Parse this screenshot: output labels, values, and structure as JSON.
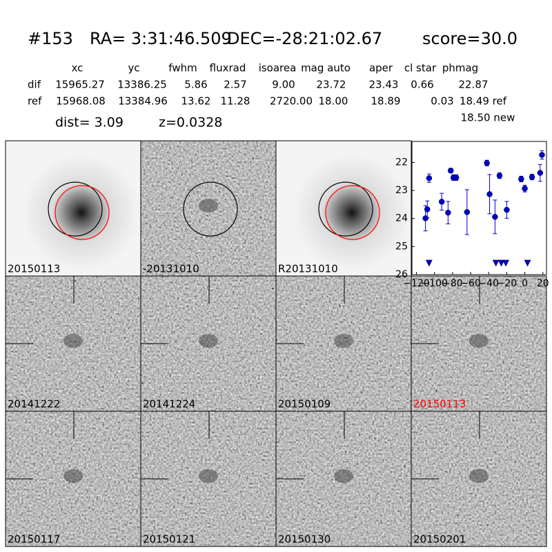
{
  "header": {
    "id": "#153",
    "ra": "RA= 3:31:46.509",
    "dec": "DEC=-28:21:02.67",
    "score": "score=30.0"
  },
  "table": {
    "columns": [
      "xc",
      "yc",
      "fwhm",
      "fluxrad",
      "isoarea",
      "mag auto",
      "aper",
      "cl star",
      "phmag"
    ],
    "rows": [
      {
        "label": "dif",
        "cells": [
          "15965.27",
          "13386.25",
          "5.86",
          "2.57",
          "9.00",
          "23.72",
          "23.43",
          "0.66",
          "22.87"
        ]
      },
      {
        "label": "ref",
        "cells": [
          "15968.08",
          "13384.96",
          "13.62",
          "11.28",
          "2720.00",
          "18.00",
          "18.89",
          "0.03",
          "18.49 ref"
        ]
      }
    ],
    "extra": "18.50 new"
  },
  "dist": "dist=  3.09",
  "z": "z=0.0328",
  "stamps": [
    {
      "label": "20150113",
      "color": "#000000"
    },
    {
      "label": "-20131010",
      "color": "#000000"
    },
    {
      "label": "R20131010",
      "color": "#000000"
    },
    {
      "label": "20141222",
      "color": "#000000"
    },
    {
      "label": "20141224",
      "color": "#000000"
    },
    {
      "label": "20150109",
      "color": "#000000"
    },
    {
      "label": "20150113",
      "color": "#ff0000"
    },
    {
      "label": "20150117",
      "color": "#000000"
    },
    {
      "label": "20150121",
      "color": "#000000"
    },
    {
      "label": "20150130",
      "color": "#000000"
    },
    {
      "label": "20150201",
      "color": "#000000"
    }
  ],
  "chart_data": {
    "type": "scatter",
    "color": "#0000cc",
    "x": [
      -110,
      -108,
      -106,
      -92,
      -85,
      -82,
      -79,
      -76,
      -64,
      -42,
      -39,
      -33,
      -28,
      -20,
      -4,
      0,
      8,
      17,
      19
    ],
    "values": [
      23.99,
      23.67,
      22.56,
      23.4,
      23.79,
      22.29,
      22.54,
      22.54,
      23.77,
      22.02,
      23.13,
      23.94,
      22.47,
      23.69,
      22.59,
      22.93,
      22.52,
      22.37,
      21.73
    ],
    "errors": [
      0.45,
      0.3,
      0.15,
      0.3,
      0.4,
      0.08,
      0.1,
      0.1,
      0.8,
      0.1,
      0.7,
      0.6,
      0.1,
      0.3,
      0.1,
      0.12,
      0.1,
      0.3,
      0.15
    ],
    "limits_x": [
      -106,
      -32,
      -26,
      -21,
      3
    ],
    "limits_values": [
      25.58,
      25.58,
      25.58,
      25.58,
      25.58
    ],
    "xlim": [
      -125,
      24
    ],
    "ylim": [
      26,
      21.25
    ],
    "y_inverted": true,
    "xticks": [
      {
        "value": -120,
        "label": "−120"
      },
      {
        "value": -100,
        "label": "−100"
      },
      {
        "value": -80,
        "label": "−80"
      },
      {
        "value": -60,
        "label": "−60"
      },
      {
        "value": -40,
        "label": "−40"
      },
      {
        "value": -20,
        "label": "−20"
      },
      0,
      20
    ],
    "yticks": [
      22,
      23,
      24,
      25,
      26
    ]
  }
}
